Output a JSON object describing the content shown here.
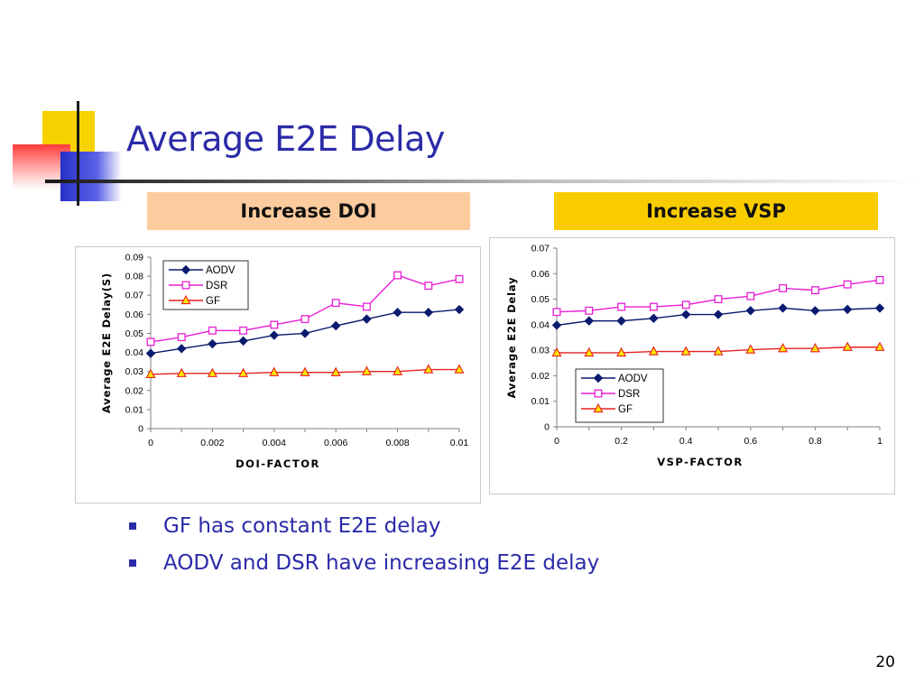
{
  "slide": {
    "title": "Average E2E Delay",
    "page_number": "20",
    "title_color": "#2b2ba8"
  },
  "sections": {
    "left_label": "Increase DOI",
    "right_label": "Increase VSP"
  },
  "bullets": [
    "GF has constant E2E delay",
    "AODV and DSR have increasing E2E delay"
  ],
  "chart_data": [
    {
      "type": "line",
      "xlabel": "DOI-FACTOR",
      "ylabel": "Average E2E Delay(S)",
      "x": [
        0,
        0.001,
        0.002,
        0.003,
        0.004,
        0.005,
        0.006,
        0.007,
        0.008,
        0.009,
        0.01
      ],
      "xlim": [
        0,
        0.01
      ],
      "ylim": [
        0,
        0.09
      ],
      "xticks": [
        "0",
        "0.002",
        "0.004",
        "0.006",
        "0.008",
        "0.01"
      ],
      "xtick_values": [
        0,
        0.002,
        0.004,
        0.006,
        0.008,
        0.01
      ],
      "yticks": [
        "0",
        "0.01",
        "0.02",
        "0.03",
        "0.04",
        "0.05",
        "0.06",
        "0.07",
        "0.08",
        "0.09"
      ],
      "ytick_values": [
        0,
        0.01,
        0.02,
        0.03,
        0.04,
        0.05,
        0.06,
        0.07,
        0.08,
        0.09
      ],
      "grid": false,
      "legend_position": "top-left",
      "series": [
        {
          "name": "AODV",
          "color": "#0a1a6e",
          "marker": "diamond",
          "values": [
            0.0395,
            0.042,
            0.0445,
            0.046,
            0.049,
            0.05,
            0.054,
            0.0575,
            0.061,
            0.061,
            0.0625
          ]
        },
        {
          "name": "DSR",
          "color": "#e81ed6",
          "marker": "square",
          "values": [
            0.0455,
            0.048,
            0.0515,
            0.0515,
            0.0545,
            0.0575,
            0.066,
            0.064,
            0.0805,
            0.075,
            0.0785
          ]
        },
        {
          "name": "GF",
          "color": "#e52020",
          "marker": "triangle",
          "values": [
            0.0285,
            0.029,
            0.029,
            0.029,
            0.0295,
            0.0295,
            0.0295,
            0.03,
            0.03,
            0.031,
            0.031
          ]
        }
      ]
    },
    {
      "type": "line",
      "xlabel": "VSP-FACTOR",
      "ylabel": "Average E2E Delay",
      "x": [
        0,
        0.1,
        0.2,
        0.3,
        0.4,
        0.5,
        0.6,
        0.7,
        0.8,
        0.9,
        1
      ],
      "xlim": [
        0,
        1
      ],
      "ylim": [
        0,
        0.07
      ],
      "xticks": [
        "0",
        "0.2",
        "0.4",
        "0.6",
        "0.8",
        "1"
      ],
      "xtick_values": [
        0,
        0.2,
        0.4,
        0.6,
        0.8,
        1
      ],
      "yticks": [
        "0",
        "0.01",
        "0.02",
        "0.03",
        "0.04",
        "0.05",
        "0.06",
        "0.07"
      ],
      "ytick_values": [
        0,
        0.01,
        0.02,
        0.03,
        0.04,
        0.05,
        0.06,
        0.07
      ],
      "grid": false,
      "legend_position": "bottom-left",
      "series": [
        {
          "name": "AODV",
          "color": "#0a1a6e",
          "marker": "diamond",
          "values": [
            0.0398,
            0.0415,
            0.0415,
            0.0425,
            0.044,
            0.044,
            0.0455,
            0.0465,
            0.0455,
            0.046,
            0.0465
          ]
        },
        {
          "name": "DSR",
          "color": "#e81ed6",
          "marker": "square",
          "values": [
            0.045,
            0.0455,
            0.047,
            0.047,
            0.0478,
            0.05,
            0.0512,
            0.0543,
            0.0535,
            0.0558,
            0.0575
          ]
        },
        {
          "name": "GF",
          "color": "#e52020",
          "marker": "triangle",
          "values": [
            0.029,
            0.029,
            0.029,
            0.0295,
            0.0295,
            0.0295,
            0.0302,
            0.0307,
            0.0307,
            0.0312,
            0.0312
          ]
        }
      ]
    }
  ]
}
